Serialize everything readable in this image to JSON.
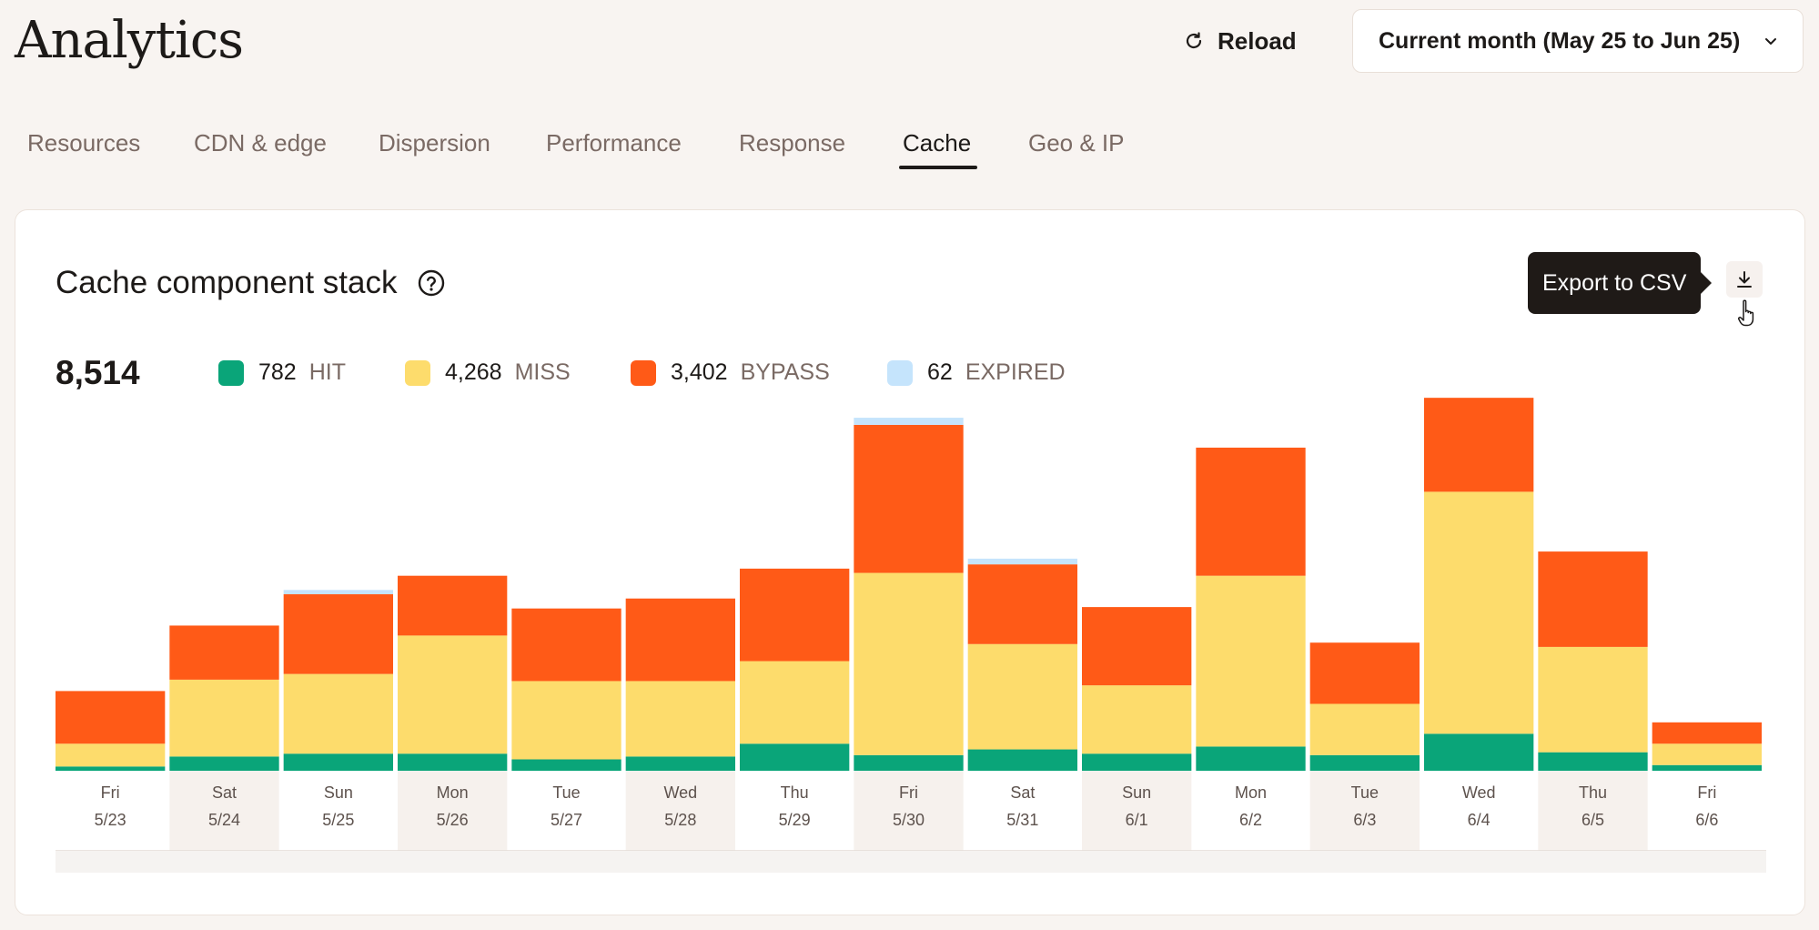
{
  "header": {
    "title": "Analytics",
    "reload_label": "Reload",
    "date_range": "Current month (May 25 to Jun 25)"
  },
  "tabs": [
    {
      "label": "Resources",
      "active": false
    },
    {
      "label": "CDN & edge",
      "active": false
    },
    {
      "label": "Dispersion",
      "active": false
    },
    {
      "label": "Performance",
      "active": false
    },
    {
      "label": "Response",
      "active": false
    },
    {
      "label": "Cache",
      "active": true
    },
    {
      "label": "Geo & IP",
      "active": false
    }
  ],
  "card": {
    "title": "Cache component stack",
    "tooltip": "Export to CSV",
    "total": "8,514",
    "legend": [
      {
        "value": "782",
        "label": "HIT",
        "color": "#0aa579"
      },
      {
        "value": "4,268",
        "label": "MISS",
        "color": "#fddc6c"
      },
      {
        "value": "3,402",
        "label": "BYPASS",
        "color": "#ff5a17"
      },
      {
        "value": "62",
        "label": "EXPIRED",
        "color": "#c5e4fc"
      }
    ]
  },
  "chart_data": {
    "type": "bar",
    "stacked": true,
    "categories": [
      {
        "day": "Fri",
        "date": "5/23"
      },
      {
        "day": "Sat",
        "date": "5/24"
      },
      {
        "day": "Sun",
        "date": "5/25"
      },
      {
        "day": "Mon",
        "date": "5/26"
      },
      {
        "day": "Tue",
        "date": "5/27"
      },
      {
        "day": "Wed",
        "date": "5/28"
      },
      {
        "day": "Thu",
        "date": "5/29"
      },
      {
        "day": "Fri",
        "date": "5/30"
      },
      {
        "day": "Sat",
        "date": "5/31"
      },
      {
        "day": "Sun",
        "date": "6/1"
      },
      {
        "day": "Mon",
        "date": "6/2"
      },
      {
        "day": "Tue",
        "date": "6/3"
      },
      {
        "day": "Wed",
        "date": "6/4"
      },
      {
        "day": "Thu",
        "date": "6/5"
      },
      {
        "day": "Fri",
        "date": "6/6"
      }
    ],
    "series": [
      {
        "name": "HIT",
        "color": "#0aa579",
        "values": [
          9,
          30,
          36,
          36,
          24,
          30,
          57,
          33,
          45,
          36,
          51,
          33,
          78,
          39,
          12
        ]
      },
      {
        "name": "MISS",
        "color": "#fddc6c",
        "values": [
          48,
          162,
          168,
          249,
          165,
          159,
          174,
          384,
          222,
          144,
          360,
          108,
          510,
          222,
          45
        ]
      },
      {
        "name": "BYPASS",
        "color": "#ff5a17",
        "values": [
          111,
          114,
          168,
          126,
          153,
          174,
          195,
          312,
          168,
          165,
          270,
          129,
          198,
          201,
          45
        ]
      },
      {
        "name": "EXPIRED",
        "color": "#c5e4fc",
        "values": [
          0,
          0,
          9,
          0,
          0,
          0,
          0,
          15,
          12,
          0,
          0,
          0,
          0,
          0,
          0
        ]
      }
    ],
    "ylim": [
      0,
      840
    ],
    "grid": false
  }
}
